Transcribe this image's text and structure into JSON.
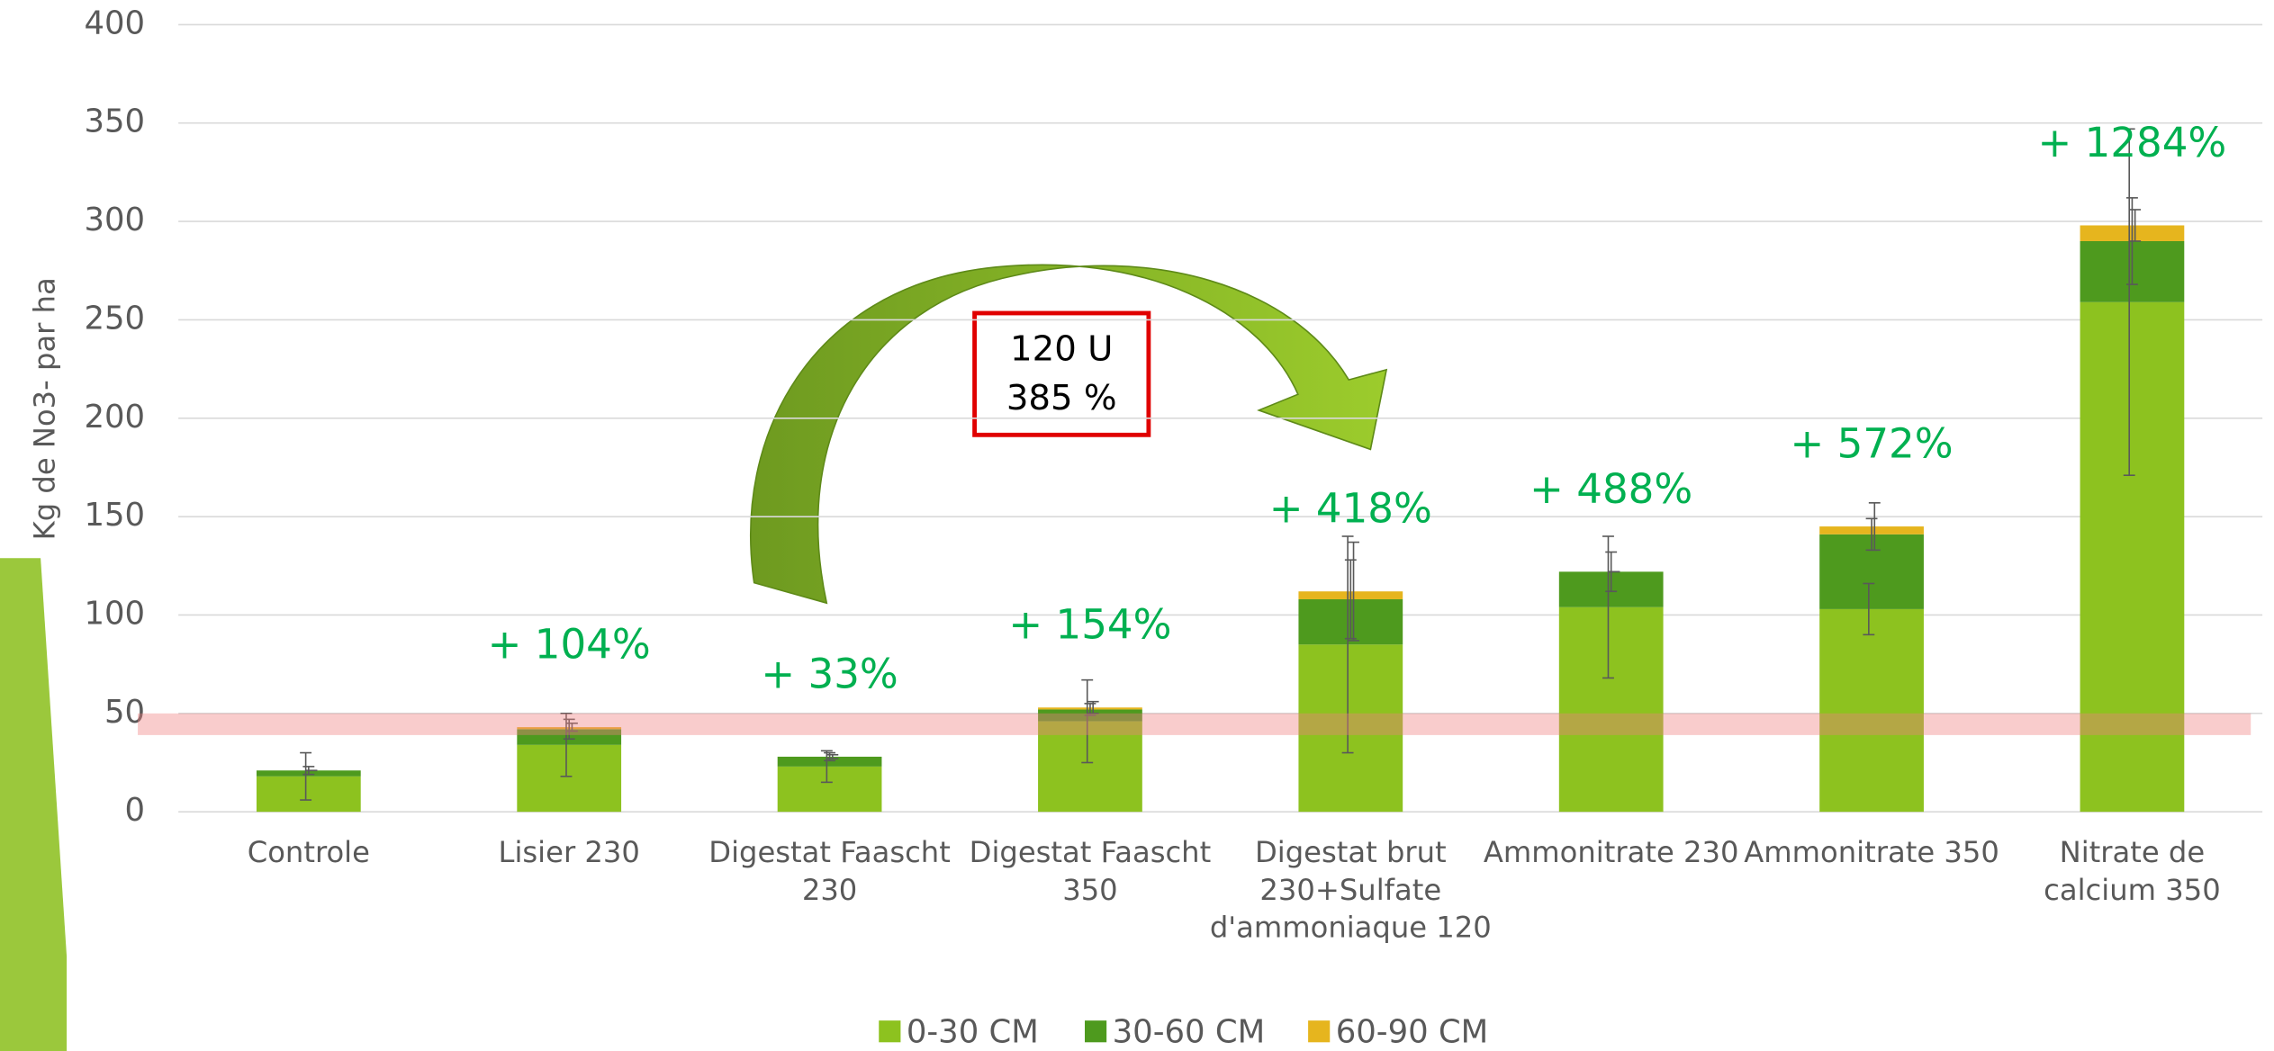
{
  "chart_data": {
    "type": "bar",
    "stacked": true,
    "y_label": "Kg de No3- par ha",
    "categories": [
      "Controle",
      "Lisier 230",
      "Digestat Faascht 230",
      "Digestat Faascht 350",
      "Digestat brut 230+Sulfate d'ammoniaque 120",
      "Ammonitrate 230",
      "Ammonitrate 350",
      "Nitrate de calcium 350"
    ],
    "series": [
      {
        "name": "0-30 CM",
        "color": "#8dc21f",
        "values": [
          18,
          34,
          23,
          46,
          85,
          104,
          103,
          259
        ],
        "errors": [
          12,
          16,
          8,
          21,
          55,
          36,
          13,
          88
        ]
      },
      {
        "name": "30-60 CM",
        "color": "#4e9a1e",
        "values": [
          3,
          8,
          5,
          6,
          23,
          18,
          38,
          31
        ],
        "errors": [
          2,
          5,
          2,
          3,
          20,
          10,
          8,
          22
        ]
      },
      {
        "name": "60-90 CM",
        "color": "#e6b51e",
        "values": [
          0,
          1,
          0,
          1,
          4,
          0,
          4,
          8
        ],
        "errors": [
          0,
          2,
          1,
          3,
          25,
          0,
          12,
          8
        ]
      }
    ],
    "annotations": [
      null,
      "+ 104%",
      "+ 33%",
      "+ 154%",
      "+ 418%",
      "+ 488%",
      "+ 572%",
      "+ 1284%"
    ],
    "annotation_color": "#00b050",
    "callout": [
      "120 U",
      "385 %"
    ],
    "threshold_band": [
      39,
      50
    ],
    "ylim": [
      0,
      400
    ],
    "yticks": [
      0,
      50,
      100,
      150,
      200,
      250,
      300,
      350,
      400
    ],
    "grid": true,
    "legend": "bottom"
  }
}
